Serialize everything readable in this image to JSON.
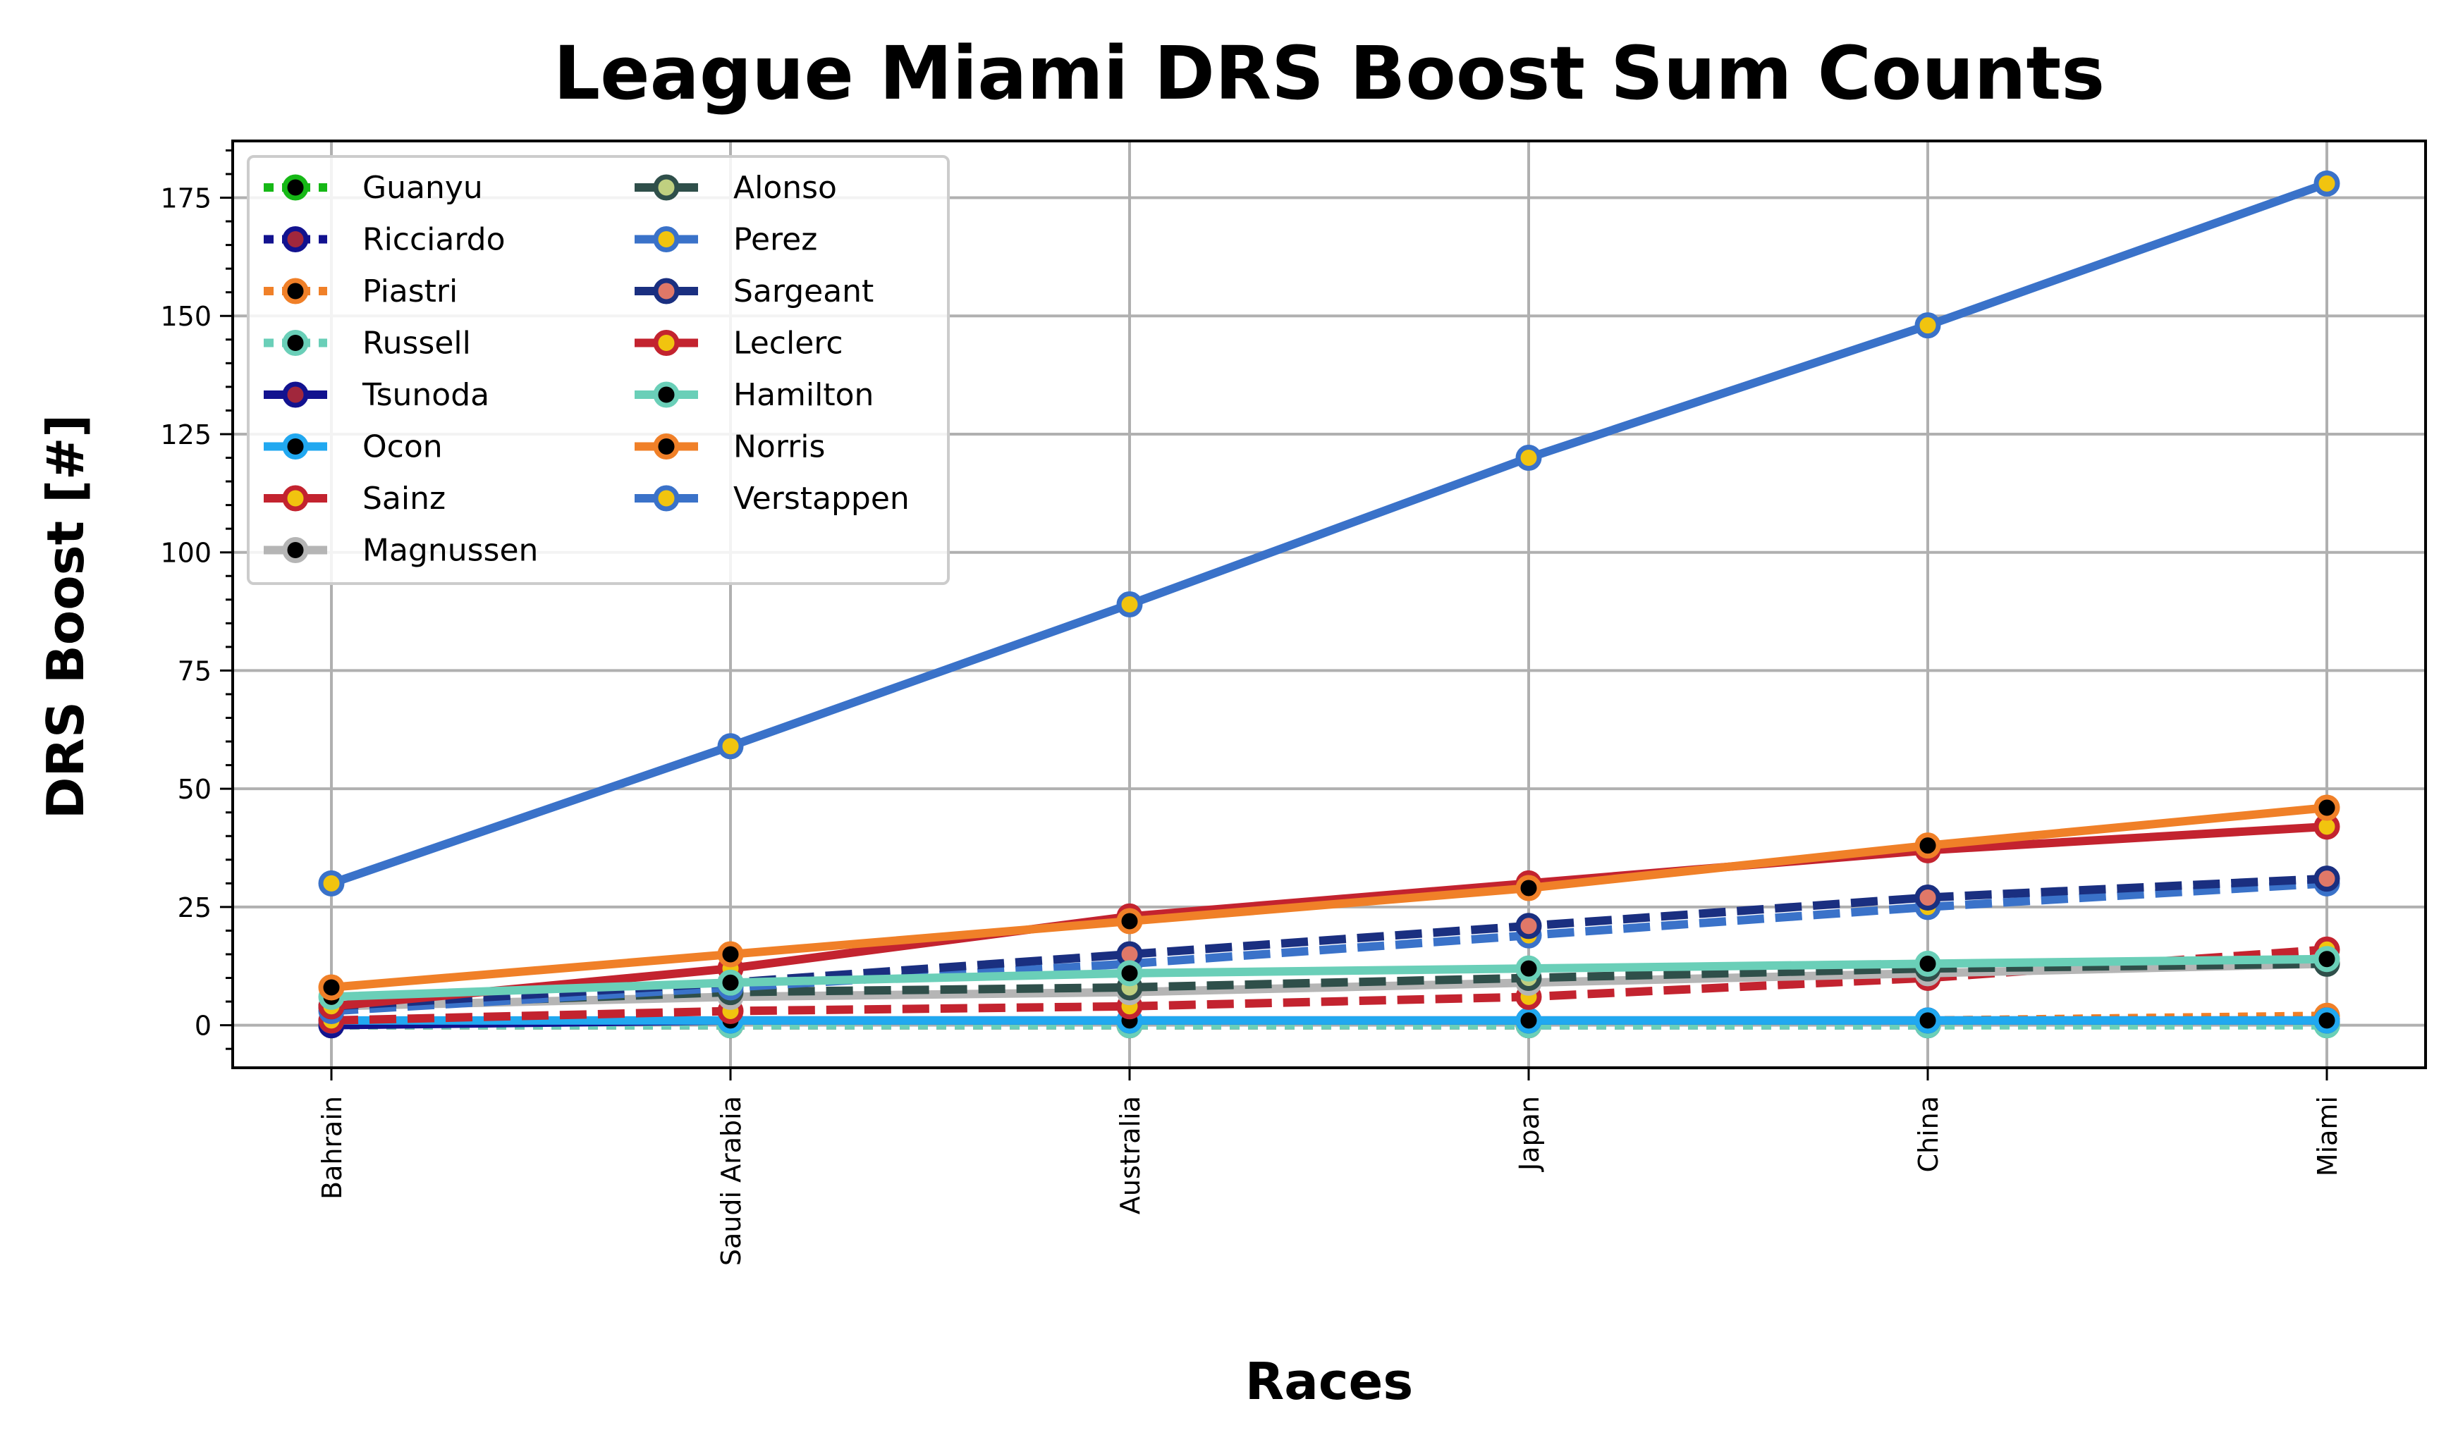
{
  "chart_data": {
    "type": "line",
    "title": "League Miami DRS Boost Sum Counts",
    "xlabel": "Races",
    "ylabel": "DRS Boost [#]",
    "categories": [
      "Bahrain",
      "Saudi Arabia",
      "Australia",
      "Japan",
      "China",
      "Miami"
    ],
    "ylim": [
      -9,
      187
    ],
    "yticks": [
      0,
      25,
      50,
      75,
      100,
      125,
      150,
      175
    ],
    "grid": true,
    "legend_placement": "upper-left",
    "legend_columns": 2,
    "series": [
      {
        "name": "Guanyu",
        "values": [
          0,
          0,
          0,
          0,
          0,
          0
        ],
        "color": "#16b816",
        "marker_face": "#000000",
        "marker_edge": "#16b816",
        "dash": "dotted"
      },
      {
        "name": "Ricciardo",
        "values": [
          0,
          0,
          0,
          0,
          0,
          1
        ],
        "color": "#12128f",
        "marker_face": "#a1273c",
        "marker_edge": "#12128f",
        "dash": "dotted"
      },
      {
        "name": "Piastri",
        "values": [
          0,
          0,
          0,
          0,
          1,
          2
        ],
        "color": "#f08028",
        "marker_face": "#000000",
        "marker_edge": "#f08028",
        "dash": "dotted"
      },
      {
        "name": "Russell",
        "values": [
          0,
          0,
          0,
          0,
          0,
          0
        ],
        "color": "#6acfb8",
        "marker_face": "#000000",
        "marker_edge": "#6acfb8",
        "dash": "dotted"
      },
      {
        "name": "Tsunoda",
        "values": [
          0,
          1,
          1,
          1,
          1,
          1
        ],
        "color": "#12128f",
        "marker_face": "#a1273c",
        "marker_edge": "#12128f",
        "dash": "solid"
      },
      {
        "name": "Ocon",
        "values": [
          1,
          1,
          1,
          1,
          1,
          1
        ],
        "color": "#21a8f0",
        "marker_face": "#000000",
        "marker_edge": "#21a8f0",
        "dash": "solid"
      },
      {
        "name": "Sainz",
        "values": [
          1,
          3,
          4,
          6,
          10,
          16
        ],
        "color": "#c3232f",
        "marker_face": "#f1c40f",
        "marker_edge": "#c3232f",
        "dash": "dashed"
      },
      {
        "name": "Magnussen",
        "values": [
          4,
          6,
          7,
          9,
          11,
          13
        ],
        "color": "#b5b5b5",
        "marker_face": "#000000",
        "marker_edge": "#b5b5b5",
        "dash": "solid"
      },
      {
        "name": "Alonso",
        "values": [
          4,
          7,
          8,
          10,
          12,
          13
        ],
        "color": "#2f4f4a",
        "marker_face": "#c0d080",
        "marker_edge": "#2f4f4a",
        "dash": "dashed"
      },
      {
        "name": "Perez",
        "values": [
          3,
          8,
          13,
          19,
          25,
          30
        ],
        "color": "#3a72c9",
        "marker_face": "#f1c40f",
        "marker_edge": "#3a72c9",
        "dash": "dashed"
      },
      {
        "name": "Sargeant",
        "values": [
          4,
          9,
          15,
          21,
          27,
          31
        ],
        "color": "#1a2f80",
        "marker_face": "#e07868",
        "marker_edge": "#1a2f80",
        "dash": "dashed"
      },
      {
        "name": "Leclerc",
        "values": [
          4,
          12,
          23,
          30,
          37,
          42
        ],
        "color": "#c3232f",
        "marker_face": "#f1c40f",
        "marker_edge": "#c3232f",
        "dash": "solid"
      },
      {
        "name": "Hamilton",
        "values": [
          6,
          9,
          11,
          12,
          13,
          14
        ],
        "color": "#6acfb8",
        "marker_face": "#000000",
        "marker_edge": "#6acfb8",
        "dash": "solid"
      },
      {
        "name": "Norris",
        "values": [
          8,
          15,
          22,
          29,
          38,
          46
        ],
        "color": "#f08028",
        "marker_face": "#000000",
        "marker_edge": "#f08028",
        "dash": "solid"
      },
      {
        "name": "Verstappen",
        "values": [
          30,
          59,
          89,
          120,
          148,
          178
        ],
        "color": "#3a72c9",
        "marker_face": "#f1c40f",
        "marker_edge": "#3a72c9",
        "dash": "solid"
      }
    ]
  }
}
